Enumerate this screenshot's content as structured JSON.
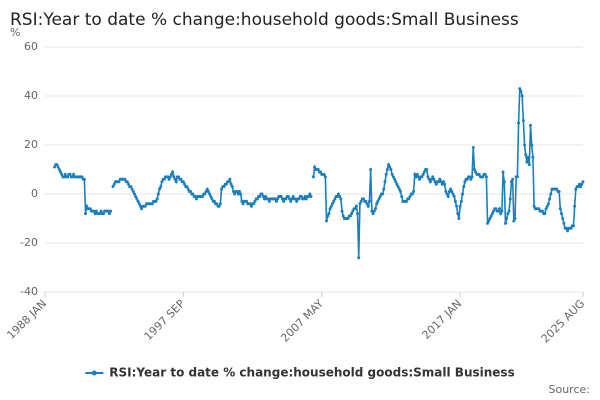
{
  "chart_data": {
    "type": "line",
    "title": "RSI:Year to date % change:household goods:Small Business",
    "ylabel": "%",
    "source": "Source:",
    "categories": [
      "1988 JAN",
      null,
      null,
      null,
      null,
      null,
      null,
      null,
      null,
      null,
      null,
      null,
      null,
      null,
      null,
      null,
      null,
      null,
      null,
      null,
      null,
      null,
      null,
      null,
      null,
      null,
      null,
      null,
      null,
      null,
      null,
      null,
      null,
      null,
      null,
      null,
      null,
      null,
      null,
      null,
      null,
      null,
      null,
      null,
      null,
      null,
      null,
      null,
      null,
      null,
      null,
      null,
      null,
      null,
      null,
      null,
      null,
      null,
      null,
      null,
      null,
      null,
      null,
      null,
      null,
      null,
      null,
      null,
      null,
      null,
      null,
      null,
      null,
      null,
      null,
      null,
      null,
      null,
      null,
      null,
      null,
      null,
      null,
      null,
      null,
      null,
      null,
      null,
      null,
      null,
      null,
      null,
      null,
      null,
      null,
      null,
      null,
      null,
      null,
      null,
      null,
      null,
      null,
      null,
      null,
      null,
      null,
      null,
      null,
      null,
      null,
      null,
      null,
      null,
      null,
      null,
      "1997 SEP",
      null,
      null,
      null,
      null,
      null,
      null,
      null,
      null,
      null,
      null,
      null,
      null,
      null,
      null,
      null,
      null,
      null,
      null,
      null,
      null,
      null,
      null,
      null,
      null,
      null,
      null,
      null,
      null,
      null,
      null,
      null,
      null,
      null,
      null,
      null,
      null,
      null,
      null,
      null,
      null,
      null,
      null,
      null,
      null,
      null,
      null,
      null,
      null,
      null,
      null,
      null,
      null,
      null,
      null,
      null,
      null,
      null,
      null,
      null,
      null,
      null,
      null,
      null,
      null,
      null,
      null,
      null,
      null,
      null,
      null,
      null,
      null,
      null,
      null,
      null,
      null,
      null,
      null,
      null,
      null,
      null,
      null,
      null,
      null,
      null,
      null,
      null,
      null,
      null,
      null,
      null,
      null,
      null,
      null,
      null,
      null,
      null,
      null,
      null,
      null,
      null,
      null,
      null,
      null,
      null,
      null,
      null,
      null,
      null,
      null,
      null,
      null,
      null,
      null,
      null,
      "2007 MAY",
      null,
      null,
      null,
      null,
      null,
      null,
      null,
      null,
      null,
      null,
      null,
      null,
      null,
      null,
      null,
      null,
      null,
      null,
      null,
      null,
      null,
      null,
      null,
      null,
      null,
      null,
      null,
      null,
      null,
      null,
      null,
      null,
      null,
      null,
      null,
      null,
      null,
      null,
      null,
      null,
      null,
      null,
      null,
      null,
      null,
      null,
      null,
      null,
      null,
      null,
      null,
      null,
      null,
      null,
      null,
      null,
      null,
      null,
      null,
      null,
      null,
      null,
      null,
      null,
      null,
      null,
      null,
      null,
      null,
      null,
      null,
      null,
      null,
      null,
      null,
      null,
      null,
      null,
      null,
      null,
      null,
      null,
      null,
      null,
      null,
      null,
      null,
      null,
      null,
      null,
      null,
      null,
      null,
      null,
      null,
      null,
      null,
      null,
      null,
      null,
      null,
      null,
      null,
      null,
      null,
      null,
      null,
      null,
      null,
      null,
      null,
      null,
      null,
      null,
      null,
      "2017 JAN",
      null,
      null,
      null,
      null,
      null,
      null,
      null,
      null,
      null,
      null,
      null,
      null,
      null,
      null,
      null,
      null,
      null,
      null,
      null,
      null,
      null,
      null,
      null,
      null,
      null,
      null,
      null,
      null,
      null,
      null,
      null,
      null,
      null,
      null,
      null,
      null,
      null,
      null,
      null,
      null,
      null,
      null,
      null,
      null,
      null,
      null,
      null,
      null,
      null,
      null,
      null,
      null,
      null,
      null,
      null,
      null,
      null,
      null,
      null,
      null,
      null,
      null,
      null,
      null,
      null,
      null,
      null,
      null,
      null,
      null,
      null,
      null,
      null,
      null,
      null,
      null,
      null,
      null,
      null,
      null,
      null,
      null,
      null,
      null,
      null,
      null,
      null,
      null,
      null,
      null,
      null,
      null,
      null,
      null,
      null,
      null,
      null,
      null,
      null,
      null,
      null,
      null,
      "2025 AUG"
    ],
    "series": [
      {
        "name": "RSI:Year to date % change:household goods:Small Business",
        "color": "#1b7fbc",
        "values": [
          null,
          null,
          null,
          null,
          null,
          null,
          null,
          null,
          11,
          12,
          12,
          11,
          10,
          9,
          8,
          7,
          7,
          8,
          7,
          7,
          8,
          8,
          7,
          7,
          8,
          7,
          7,
          7,
          7,
          7,
          7,
          7,
          6,
          6,
          -8,
          -5,
          -6,
          -6,
          -6,
          -7,
          -7,
          -7,
          -8,
          -7,
          -8,
          -8,
          -8,
          -7,
          -8,
          -8,
          -7,
          -7,
          -7,
          -7,
          -8,
          -7,
          null,
          3,
          4,
          5,
          5,
          5,
          5,
          6,
          6,
          6,
          6,
          6,
          5,
          5,
          4,
          3,
          3,
          2,
          1,
          0,
          -1,
          -2,
          -3,
          -4,
          -5,
          -6,
          -5,
          -5,
          -5,
          -4,
          -4,
          -4,
          -4,
          -4,
          -4,
          -3,
          -3,
          -3,
          -2,
          0,
          2,
          3,
          5,
          6,
          6,
          7,
          7,
          7,
          6,
          7,
          8,
          9,
          7,
          6,
          5,
          7,
          7,
          6,
          6,
          5,
          5,
          4,
          3,
          3,
          2,
          1,
          1,
          0,
          0,
          -1,
          -1,
          -2,
          -1,
          -1,
          -1,
          -1,
          -1,
          0,
          0,
          1,
          2,
          1,
          0,
          -1,
          -2,
          -3,
          -3,
          -4,
          -4,
          -5,
          -5,
          -4,
          2,
          3,
          3,
          4,
          4,
          5,
          5,
          6,
          4,
          3,
          1,
          0,
          1,
          1,
          0,
          1,
          0,
          -3,
          -4,
          -3,
          -3,
          -3,
          -4,
          -4,
          -4,
          -5,
          -4,
          -4,
          -3,
          -2,
          -2,
          -1,
          -1,
          0,
          0,
          -1,
          -2,
          -1,
          -2,
          -2,
          -3,
          -2,
          -2,
          -2,
          -2,
          -2,
          -3,
          -2,
          -1,
          -1,
          -1,
          -2,
          -3,
          -2,
          -2,
          -1,
          -1,
          -2,
          -3,
          -2,
          -1,
          -2,
          -2,
          -3,
          -2,
          -2,
          -1,
          -1,
          -2,
          -2,
          -1,
          -2,
          -1,
          -1,
          0,
          -1,
          null,
          7,
          11,
          10,
          10,
          10,
          9,
          9,
          8,
          8,
          8,
          7,
          -11,
          -9,
          -8,
          -6,
          -5,
          -4,
          -3,
          -2,
          -1,
          -1,
          0,
          -1,
          -2,
          -7,
          -9,
          -10,
          -10,
          -10,
          -10,
          -9,
          -9,
          -8,
          -7,
          -6,
          -6,
          -5,
          -8,
          -26,
          -4,
          -3,
          -2,
          -2,
          -3,
          -3,
          -4,
          -5,
          -3,
          10,
          -7,
          -8,
          -7,
          -6,
          -4,
          -3,
          -2,
          -1,
          0,
          0,
          2,
          5,
          8,
          10,
          12,
          11,
          10,
          8,
          7,
          6,
          5,
          4,
          3,
          2,
          1,
          -1,
          -3,
          -3,
          -3,
          -3,
          -2,
          -2,
          -1,
          0,
          0,
          1,
          8,
          7,
          8,
          7,
          6,
          7,
          7,
          8,
          9,
          10,
          10,
          7,
          6,
          5,
          6,
          7,
          6,
          5,
          4,
          5,
          5,
          6,
          5,
          4,
          5,
          4,
          1,
          0,
          -1,
          1,
          2,
          1,
          0,
          -1,
          -3,
          -5,
          -8,
          -10,
          -5,
          -3,
          0,
          3,
          5,
          6,
          6,
          7,
          7,
          6,
          7,
          19,
          10,
          9,
          8,
          8,
          8,
          7,
          7,
          7,
          8,
          8,
          7,
          -12,
          -11,
          -10,
          -9,
          -8,
          -7,
          -6,
          -6,
          -7,
          -7,
          -6,
          -8,
          -7,
          9,
          5,
          -12,
          -10,
          -8,
          -7,
          -2,
          5,
          6,
          -11,
          -10,
          7,
          7,
          29,
          43,
          42,
          40,
          30,
          20,
          16,
          13,
          15,
          12,
          28,
          20,
          15,
          -5,
          -6,
          -6,
          -6,
          -6,
          -7,
          -7,
          -7,
          -8,
          -8,
          -6,
          -5,
          -4,
          -2,
          0,
          2,
          2,
          2,
          2,
          2,
          1,
          1,
          -6,
          -8,
          -10,
          -12,
          -14,
          -14,
          -15,
          -14,
          -14,
          -14,
          -13,
          -13,
          -5,
          2,
          3,
          3,
          4,
          3,
          4,
          5
        ]
      }
    ],
    "ylim": [
      -40,
      60
    ],
    "yticks": [
      -40,
      -20,
      0,
      20,
      40,
      60
    ],
    "grid": true,
    "legend": "bottom"
  }
}
